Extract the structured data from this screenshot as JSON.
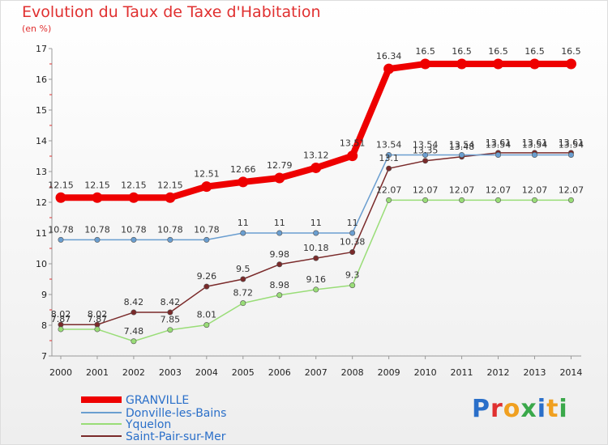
{
  "title": "Evolution du Taux de Taxe d'Habitation",
  "subtitle": "(en %)",
  "logo": {
    "text": "Proxiti",
    "colors": [
      "#2a6fc9",
      "#e03030",
      "#f0a020",
      "#3aa84a",
      "#2a6fc9",
      "#f0a020",
      "#3aa84a"
    ]
  },
  "chart_data": {
    "type": "line",
    "title": "Evolution du Taux de Taxe d'Habitation",
    "ylabel": "(en %)",
    "xlabel": "",
    "x": [
      "2000",
      "2001",
      "2002",
      "2003",
      "2004",
      "2005",
      "2006",
      "2007",
      "2008",
      "2009",
      "2010",
      "2011",
      "2012",
      "2013",
      "2014"
    ],
    "yticks": [
      "7",
      "8",
      "9",
      "10",
      "11",
      "12",
      "13",
      "14",
      "15",
      "16",
      "17"
    ],
    "ylim": [
      7,
      17
    ],
    "grid": false,
    "legend": "bottom-left",
    "series": [
      {
        "name": "GRANVILLE",
        "color": "#ee0000",
        "values": [
          12.15,
          12.15,
          12.15,
          12.15,
          12.51,
          12.66,
          12.79,
          13.12,
          13.51,
          16.34,
          16.5,
          16.5,
          16.5,
          16.5,
          16.5
        ],
        "labels": [
          "12.15",
          "12.15",
          "12.15",
          "12.15",
          "12.51",
          "12.66",
          "12.79",
          "13.12",
          "13.51",
          "16.34",
          "16.5",
          "16.5",
          "16.5",
          "16.5",
          "16.5"
        ]
      },
      {
        "name": "Donville-les-Bains",
        "color": "#6a9ed0",
        "values": [
          10.78,
          10.78,
          10.78,
          10.78,
          10.78,
          11,
          11,
          11,
          11,
          13.54,
          13.54,
          13.54,
          13.54,
          13.54,
          13.54
        ],
        "labels": [
          "10.78",
          "10.78",
          "10.78",
          "10.78",
          "10.78",
          "11",
          "11",
          "11",
          "11",
          "13.54",
          "13.54",
          "13.54",
          "13.54",
          "13.54",
          "13.54"
        ]
      },
      {
        "name": "Yquelon",
        "color": "#99dd77",
        "values": [
          7.87,
          7.87,
          7.48,
          7.85,
          8.01,
          8.72,
          8.98,
          9.16,
          9.3,
          12.07,
          12.07,
          12.07,
          12.07,
          12.07,
          12.07
        ],
        "labels": [
          "7.87",
          "7.87",
          "7.48",
          "7.85",
          "8.01",
          "8.72",
          "8.98",
          "9.16",
          "9.3",
          "12.07",
          "12.07",
          "12.07",
          "12.07",
          "12.07",
          "12.07"
        ]
      },
      {
        "name": "Saint-Pair-sur-Mer",
        "color": "#7a2a2a",
        "values": [
          8.02,
          8.02,
          8.42,
          8.42,
          9.26,
          9.5,
          9.98,
          10.18,
          10.38,
          13.1,
          13.35,
          13.48,
          13.61,
          13.61,
          13.61
        ],
        "labels": [
          "8.02",
          "8.02",
          "8.42",
          "8.42",
          "9.26",
          "9.5",
          "9.98",
          "10.18",
          "10.38",
          "13.1",
          "13.35",
          "13.48",
          "13.61",
          "13.61",
          "13.61"
        ]
      }
    ]
  }
}
